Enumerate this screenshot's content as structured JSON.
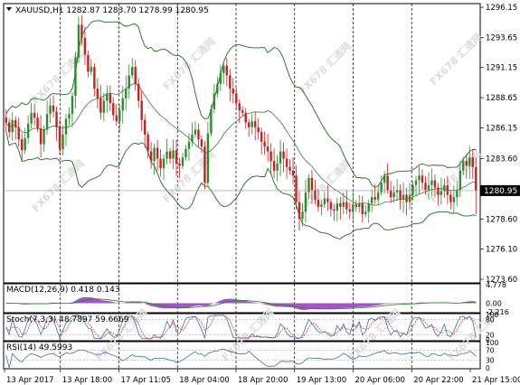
{
  "main_pane": {
    "header": "XAUUSD,H1  1282.87 1283.70 1278.99 1280.95",
    "current_price": "1280.95",
    "price_axis_labels": [
      "1296.15",
      "1293.65",
      "1291.15",
      "1288.65",
      "1286.15",
      "1283.60",
      "1280.95",
      "1278.60",
      "1276.10",
      "1273.60"
    ],
    "watermark": "FX678 汇通网"
  },
  "macd_pane": {
    "header": "MACD(12,26,9) 0.418 0.143",
    "axis_labels": [
      "4.778",
      "0.00",
      "-2.216"
    ]
  },
  "stoch_pane": {
    "header": "Stoch(7,3,3) 48.7897 59.6669",
    "axis_labels": [
      "100",
      "80",
      "20",
      "0"
    ]
  },
  "rsi_pane": {
    "header": "RSI(14) 49.5993",
    "axis_labels": [
      "100",
      "70",
      "30",
      "0"
    ]
  },
  "time_axis": [
    "13 Apr 2017",
    "13 Apr 18:00",
    "17 Apr 11:05",
    "18 Apr 04:00",
    "18 Apr 20:00",
    "19 Apr 13:00",
    "20 Apr 06:00",
    "20 Apr 22:00",
    "21 Apr 15:00"
  ],
  "colors": {
    "bull": "#2e8b2e",
    "bear": "#cc1f1f",
    "band": "#1f6b1f",
    "histogram": "#9b3fc6",
    "signal": "#2e8b2e",
    "indicator_line": "#3a6fb0",
    "grid": "#000000",
    "background": "#ffffff"
  },
  "chart_data": {
    "type": "candlestick",
    "symbol": "XAUUSD",
    "timeframe": "H1",
    "ohlc_last": {
      "open": 1282.87,
      "high": 1283.7,
      "low": 1278.99,
      "close": 1280.95
    },
    "ylim": [
      1273.6,
      1296.15
    ],
    "x_labels": [
      "13 Apr 2017",
      "13 Apr 18:00",
      "17 Apr 11:05",
      "18 Apr 04:00",
      "18 Apr 20:00",
      "19 Apr 13:00",
      "20 Apr 06:00",
      "20 Apr 22:00",
      "21 Apr 15:00"
    ],
    "close_path": [
      1286.6,
      1285.8,
      1286.8,
      1286.2,
      1285.2,
      1284.3,
      1285.3,
      1286.5,
      1287.4,
      1287.0,
      1286.1,
      1284.8,
      1286.0,
      1287.3,
      1288.0,
      1287.5,
      1286.2,
      1284.4,
      1285.6,
      1286.9,
      1287.3,
      1288.8,
      1292.0,
      1294.7,
      1293.6,
      1292.2,
      1290.8,
      1291.2,
      1289.4,
      1288.6,
      1287.4,
      1288.4,
      1289.0,
      1288.2,
      1287.2,
      1286.7,
      1287.6,
      1288.6,
      1289.4,
      1290.5,
      1291.2,
      1289.8,
      1288.4,
      1286.8,
      1285.6,
      1284.2,
      1283.4,
      1284.5,
      1283.6,
      1282.8,
      1283.6,
      1284.2,
      1283.6,
      1284.3,
      1283.2,
      1283.0,
      1283.7,
      1284.4,
      1285.0,
      1285.6,
      1286.0,
      1285.2,
      1284.6,
      1281.6,
      1285.7,
      1287.7,
      1289.0,
      1289.8,
      1290.7,
      1291.3,
      1290.5,
      1289.4,
      1289.0,
      1288.2,
      1287.6,
      1287.4,
      1286.6,
      1286.2,
      1286.7,
      1286.2,
      1285.8,
      1285.0,
      1284.6,
      1284.2,
      1283.4,
      1282.6,
      1283.2,
      1284.2,
      1283.6,
      1282.9,
      1282.6,
      1282.2,
      1280.0,
      1278.6,
      1279.2,
      1280.8,
      1282.0,
      1281.0,
      1280.2,
      1279.6,
      1279.8,
      1280.3,
      1280.0,
      1279.4,
      1279.3,
      1279.9,
      1279.6,
      1280.0,
      1279.4,
      1279.2,
      1279.8,
      1279.6,
      1279.9,
      1279.0,
      1279.2,
      1279.9,
      1280.4,
      1280.2,
      1280.8,
      1281.6,
      1282.2,
      1281.0,
      1280.4,
      1280.8,
      1281.0,
      1280.2,
      1280.6,
      1280.0,
      1280.6,
      1281.4,
      1281.8,
      1282.2,
      1281.6,
      1281.0,
      1281.4,
      1281.8,
      1281.2,
      1280.6,
      1280.9,
      1281.4,
      1280.6,
      1280.0,
      1280.4,
      1281.0,
      1282.6,
      1283.4,
      1283.0,
      1283.7,
      1282.9,
      1280.95
    ]
  }
}
